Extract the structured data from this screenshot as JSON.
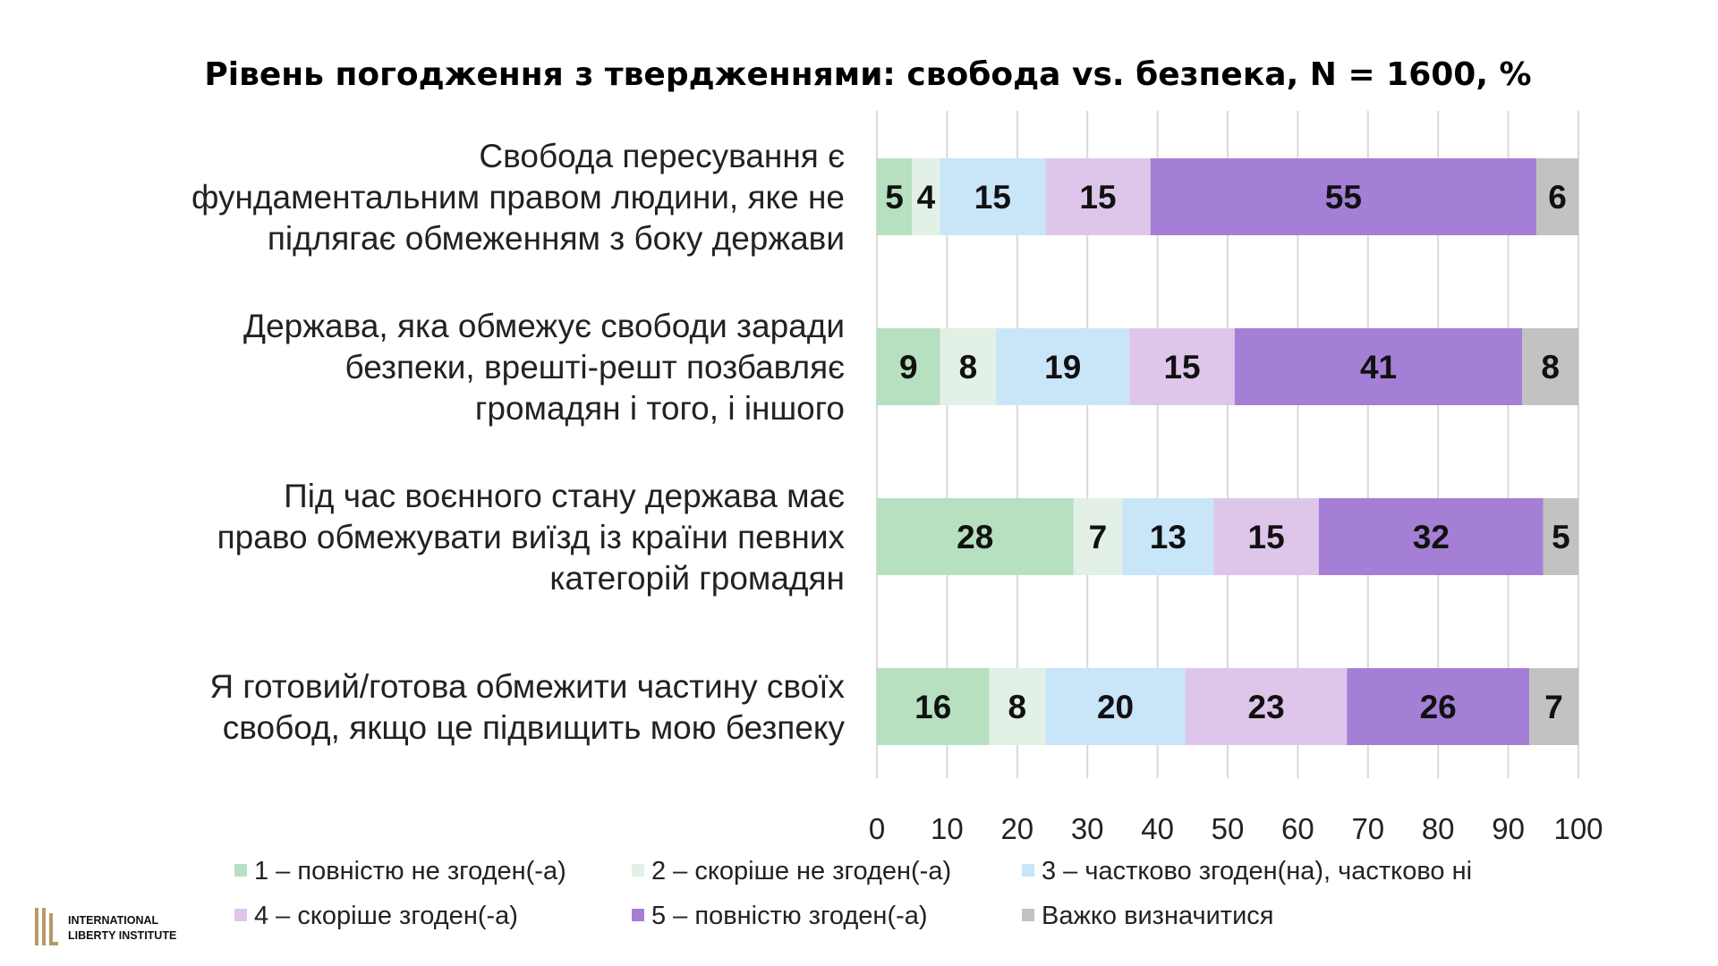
{
  "chart_data": {
    "type": "bar",
    "orientation": "horizontal",
    "stacked": true,
    "title": "Рівень погодження з твердженнями: свобода vs. безпека, N = 1600, %",
    "categories": [
      [
        "Свобода пересування є",
        "фундаментальним правом людини, яке не",
        "підлягає обмеженням з боку держави"
      ],
      [
        "Держава, яка обмежує свободи заради",
        "безпеки, врешті-решт позбавляє",
        "громадян і того, і іншого"
      ],
      [
        "Під час воєнного стану держава має",
        "право обмежувати виїзд із країни певних",
        "категорій громадян"
      ],
      [
        "Я готовий/готова обмежити частину своїх",
        "свобод, якщо це підвищить мою безпеку"
      ]
    ],
    "series": [
      {
        "name": "1 – повністю не згоден(-а)",
        "color": "#b6e0bf",
        "values": [
          5,
          9,
          28,
          16
        ]
      },
      {
        "name": "2 – скоріше не згоден(-а)",
        "color": "#e2f0e5",
        "values": [
          4,
          8,
          7,
          8
        ]
      },
      {
        "name": "3 – частково згоден(на), частково ні",
        "color": "#c9e5f8",
        "values": [
          15,
          19,
          13,
          20
        ]
      },
      {
        "name": "4 – скоріше згоден(-а)",
        "color": "#dec6ea",
        "values": [
          15,
          15,
          15,
          23
        ]
      },
      {
        "name": "5 – повністю згоден(-а)",
        "color": "#a57fd6",
        "values": [
          55,
          41,
          32,
          26
        ]
      },
      {
        "name": "Важко визначитися",
        "color": "#c2c2c2",
        "values": [
          6,
          8,
          5,
          7
        ]
      }
    ],
    "xlim": [
      0,
      100
    ],
    "xticks": [
      "0",
      "10",
      "20",
      "30",
      "40",
      "50",
      "60",
      "70",
      "80",
      "90",
      "100"
    ],
    "grid": true,
    "legend_position": "bottom"
  },
  "logo": {
    "line1": "INTERNATIONAL",
    "line2": "LIBERTY INSTITUTE",
    "color": "#b59a6a"
  }
}
